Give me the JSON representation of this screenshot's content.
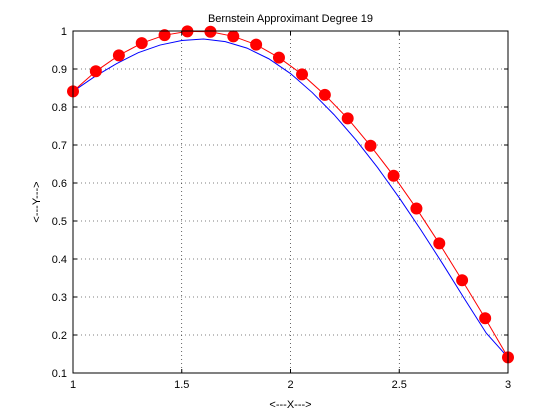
{
  "chart_data": {
    "type": "line",
    "title": "Bernstein Approximant Degree 19",
    "xlabel": "<---X--->",
    "ylabel": "<---Y--->",
    "xlim": [
      1,
      3
    ],
    "ylim": [
      0.1,
      1
    ],
    "xticks": [
      1,
      1.5,
      2,
      2.5,
      3
    ],
    "yticks": [
      0.1,
      0.2,
      0.3,
      0.4,
      0.5,
      0.6,
      0.7,
      0.8,
      0.9,
      1
    ],
    "xtick_labels": [
      "1",
      "1.5",
      "2",
      "2.5",
      "3"
    ],
    "ytick_labels": [
      "0.1",
      "0.2",
      "0.3",
      "0.4",
      "0.5",
      "0.6",
      "0.7",
      "0.8",
      "0.9",
      "1"
    ],
    "grid": true,
    "series": [
      {
        "style": "red line with circle markers",
        "color": "#ff0000",
        "x": [
          1.0,
          1.105,
          1.211,
          1.316,
          1.421,
          1.526,
          1.632,
          1.737,
          1.842,
          1.947,
          2.053,
          2.158,
          2.263,
          2.368,
          2.474,
          2.579,
          2.684,
          2.789,
          2.895,
          3.0
        ],
        "y": [
          0.841,
          0.894,
          0.936,
          0.968,
          0.989,
          0.999,
          0.998,
          0.986,
          0.964,
          0.93,
          0.886,
          0.832,
          0.77,
          0.698,
          0.619,
          0.533,
          0.441,
          0.344,
          0.244,
          0.141
        ]
      },
      {
        "style": "blue line",
        "color": "#0000ff",
        "x": [
          1.0,
          1.1,
          1.2,
          1.3,
          1.4,
          1.5,
          1.6,
          1.7,
          1.8,
          1.9,
          2.0,
          2.1,
          2.2,
          2.3,
          2.4,
          2.5,
          2.6,
          2.7,
          2.8,
          2.9,
          3.0
        ],
        "y": [
          0.841,
          0.88,
          0.914,
          0.943,
          0.963,
          0.975,
          0.979,
          0.972,
          0.955,
          0.927,
          0.888,
          0.838,
          0.78,
          0.714,
          0.641,
          0.561,
          0.476,
          0.387,
          0.295,
          0.205,
          0.141
        ]
      }
    ]
  }
}
